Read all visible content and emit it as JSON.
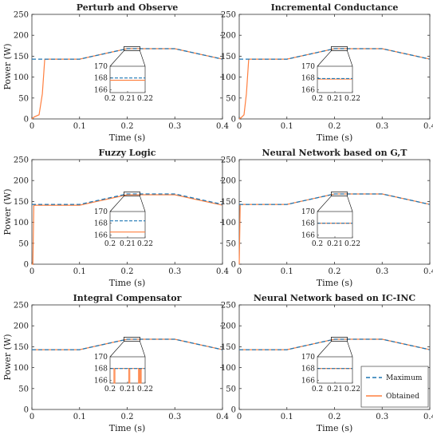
{
  "figure": {
    "legend": {
      "maximum_label": "Maximum",
      "obtained_label": "Obtained",
      "placement": "bottom-right of last panel"
    }
  },
  "colors": {
    "maximum": "#1f77b4",
    "obtained": "#ff7f3f",
    "axis": "#333333",
    "text": "#222222"
  },
  "chart_data": [
    {
      "type": "line",
      "title": "Perturb and Observe",
      "xlabel": "Time (s)",
      "ylabel": "Power (W)",
      "xlim": [
        0,
        0.4
      ],
      "ylim": [
        0,
        250
      ],
      "xticks": [
        "0",
        "0.1",
        "0.2",
        "0.3",
        "0.4"
      ],
      "yticks": [
        "0",
        "50",
        "100",
        "150",
        "200",
        "250"
      ],
      "series": [
        {
          "name": "Maximum",
          "style": "dashed",
          "x": [
            0,
            0.1,
            0.2,
            0.3,
            0.4
          ],
          "y": [
            143,
            143,
            168,
            168,
            143
          ]
        },
        {
          "name": "Obtained",
          "style": "solid",
          "x": [
            0,
            0.005,
            0.015,
            0.022,
            0.027,
            0.1,
            0.2,
            0.3,
            0.4
          ],
          "y": [
            0,
            5,
            10,
            60,
            143,
            143,
            168,
            168,
            143
          ]
        }
      ],
      "inset": {
        "xlim": [
          0.2,
          0.22
        ],
        "ylim": [
          165.5,
          170
        ],
        "xticks": [
          "0.2",
          "0.21",
          "0.22"
        ],
        "yticks": [
          "170",
          "168",
          "166"
        ],
        "maximum_y": 168,
        "obtained_y": 167.6,
        "spikes": []
      }
    },
    {
      "type": "line",
      "title": "Incremental Conductance",
      "xlabel": "Time (s)",
      "ylabel": "",
      "xlim": [
        0,
        0.4
      ],
      "ylim": [
        0,
        250
      ],
      "xticks": [
        "0",
        "0.1",
        "0.2",
        "0.3",
        "0.4"
      ],
      "yticks": [
        "0",
        "50",
        "100",
        "150",
        "200",
        "250"
      ],
      "series": [
        {
          "name": "Maximum",
          "style": "dashed",
          "x": [
            0,
            0.1,
            0.2,
            0.3,
            0.4
          ],
          "y": [
            143,
            143,
            168,
            168,
            143
          ]
        },
        {
          "name": "Obtained",
          "style": "solid",
          "x": [
            0,
            0.005,
            0.01,
            0.015,
            0.02,
            0.1,
            0.2,
            0.3,
            0.4
          ],
          "y": [
            0,
            4,
            10,
            60,
            143,
            143,
            168,
            168,
            143
          ]
        }
      ],
      "inset": {
        "xlim": [
          0.2,
          0.22
        ],
        "ylim": [
          165.5,
          170
        ],
        "xticks": [
          "0.2",
          "0.21",
          "0.22"
        ],
        "yticks": [
          "170",
          "168",
          "166"
        ],
        "maximum_y": 167.9,
        "obtained_y": 167.8,
        "spikes": []
      }
    },
    {
      "type": "line",
      "title": "Fuzzy Logic",
      "xlabel": "Time (s)",
      "ylabel": "Power (W)",
      "xlim": [
        0,
        0.4
      ],
      "ylim": [
        0,
        250
      ],
      "xticks": [
        "0",
        "0.1",
        "0.2",
        "0.3",
        "0.4"
      ],
      "yticks": [
        "0",
        "50",
        "100",
        "150",
        "200",
        "250"
      ],
      "series": [
        {
          "name": "Maximum",
          "style": "dashed",
          "x": [
            0,
            0.1,
            0.2,
            0.3,
            0.4
          ],
          "y": [
            143,
            143,
            168,
            168,
            143
          ]
        },
        {
          "name": "Obtained",
          "style": "solid",
          "x": [
            0,
            0.002,
            0.004,
            0.1,
            0.2,
            0.3,
            0.4
          ],
          "y": [
            0,
            0,
            141,
            141,
            166,
            166,
            141
          ]
        }
      ],
      "inset": {
        "xlim": [
          0.2,
          0.22
        ],
        "ylim": [
          165.5,
          170
        ],
        "xticks": [
          "0.2",
          "0.21",
          "0.22"
        ],
        "yticks": [
          "170",
          "168",
          "166"
        ],
        "maximum_y": 168.4,
        "obtained_y": 166.5,
        "spikes": []
      }
    },
    {
      "type": "line",
      "title": "Neural Network based on G,T",
      "xlabel": "Time (s)",
      "ylabel": "",
      "xlim": [
        0,
        0.4
      ],
      "ylim": [
        0,
        250
      ],
      "xticks": [
        "0",
        "0.1",
        "0.2",
        "0.3",
        "0.4"
      ],
      "yticks": [
        "0",
        "50",
        "100",
        "150",
        "200",
        "250"
      ],
      "series": [
        {
          "name": "Maximum",
          "style": "dashed",
          "x": [
            0,
            0.1,
            0.2,
            0.3,
            0.4
          ],
          "y": [
            143,
            143,
            168,
            168,
            143
          ]
        },
        {
          "name": "Obtained",
          "style": "solid",
          "x": [
            0,
            0.001,
            0.002,
            0.1,
            0.2,
            0.3,
            0.4
          ],
          "y": [
            0,
            70,
            143,
            143,
            168,
            168,
            143
          ]
        }
      ],
      "inset": {
        "xlim": [
          0.2,
          0.22
        ],
        "ylim": [
          165.5,
          170
        ],
        "xticks": [
          "0.2",
          "0.21",
          "0.22"
        ],
        "yticks": [
          "170",
          "168",
          "166"
        ],
        "maximum_y": 168,
        "obtained_y": 168,
        "spikes": []
      }
    },
    {
      "type": "line",
      "title": "Integral Compensator",
      "xlabel": "Time (s)",
      "ylabel": "Power (W)",
      "xlim": [
        0,
        0.4
      ],
      "ylim": [
        0,
        250
      ],
      "xticks": [
        "0",
        "0.1",
        "0.2",
        "0.3",
        "0.4"
      ],
      "yticks": [
        "0",
        "50",
        "100",
        "150",
        "200",
        "250"
      ],
      "series": [
        {
          "name": "Maximum",
          "style": "dashed",
          "x": [
            0,
            0.1,
            0.2,
            0.3,
            0.4
          ],
          "y": [
            143,
            143,
            168,
            168,
            143
          ]
        },
        {
          "name": "Obtained",
          "style": "solid",
          "x": [
            0,
            0.1,
            0.2,
            0.3,
            0.4
          ],
          "y": [
            143,
            143,
            168,
            168,
            143
          ]
        }
      ],
      "inset": {
        "xlim": [
          0.2,
          0.22
        ],
        "ylim": [
          165.5,
          170
        ],
        "xticks": [
          "0.2",
          "0.21",
          "0.22"
        ],
        "yticks": [
          "170",
          "168",
          "166"
        ],
        "maximum_y": 168,
        "obtained_y": 168,
        "spikes": [
          0.2025,
          0.211,
          0.2165,
          0.2175
        ]
      }
    },
    {
      "type": "line",
      "title": "Neural Network based on IC-INC",
      "xlabel": "Time (s)",
      "ylabel": "",
      "xlim": [
        0,
        0.4
      ],
      "ylim": [
        0,
        250
      ],
      "xticks": [
        "0",
        "0.1",
        "0.2",
        "0.3",
        "0.4"
      ],
      "yticks": [
        "0",
        "50",
        "100",
        "150",
        "200",
        "250"
      ],
      "series": [
        {
          "name": "Maximum",
          "style": "dashed",
          "x": [
            0,
            0.1,
            0.2,
            0.3,
            0.4
          ],
          "y": [
            143,
            143,
            168,
            168,
            143
          ]
        },
        {
          "name": "Obtained",
          "style": "solid",
          "x": [
            0,
            0.1,
            0.2,
            0.3,
            0.4
          ],
          "y": [
            143,
            143,
            168,
            168,
            143
          ]
        }
      ],
      "inset": {
        "xlim": [
          0.2,
          0.22
        ],
        "ylim": [
          165.5,
          170
        ],
        "xticks": [
          "0.2",
          "0.21",
          "0.22"
        ],
        "yticks": [
          "170",
          "168",
          "166"
        ],
        "maximum_y": 168,
        "obtained_y": 168,
        "spikes": []
      },
      "legend": true
    }
  ]
}
